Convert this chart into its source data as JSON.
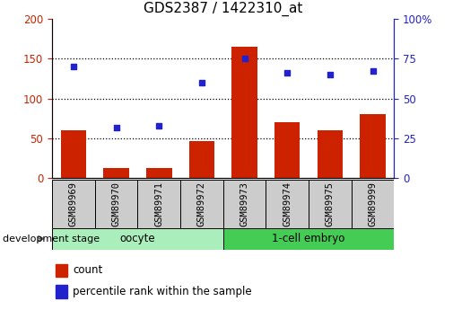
{
  "title": "GDS2387 / 1422310_at",
  "samples": [
    "GSM89969",
    "GSM89970",
    "GSM89971",
    "GSM89972",
    "GSM89973",
    "GSM89974",
    "GSM89975",
    "GSM89999"
  ],
  "counts": [
    60,
    13,
    13,
    47,
    165,
    70,
    60,
    80
  ],
  "percentile_rank": [
    70,
    32,
    33,
    60,
    75,
    66,
    65,
    67
  ],
  "bar_color": "#cc2200",
  "dot_color": "#2222cc",
  "ylim_left": [
    0,
    200
  ],
  "ylim_right": [
    0,
    100
  ],
  "yticks_left": [
    0,
    50,
    100,
    150,
    200
  ],
  "yticks_right": [
    0,
    25,
    50,
    75,
    100
  ],
  "groups": [
    {
      "label": "oocyte",
      "start": 0,
      "end": 4,
      "color": "#aaeebb"
    },
    {
      "label": "1-cell embryo",
      "start": 4,
      "end": 8,
      "color": "#44cc55"
    }
  ],
  "xlabel_stage": "development stage",
  "legend_count_label": "count",
  "legend_percentile_label": "percentile rank within the sample",
  "background_color": "#ffffff",
  "tick_color_left": "#cc2200",
  "tick_color_right": "#2222cc",
  "sample_box_color": "#cccccc",
  "plot_bg_color": "#ffffff"
}
